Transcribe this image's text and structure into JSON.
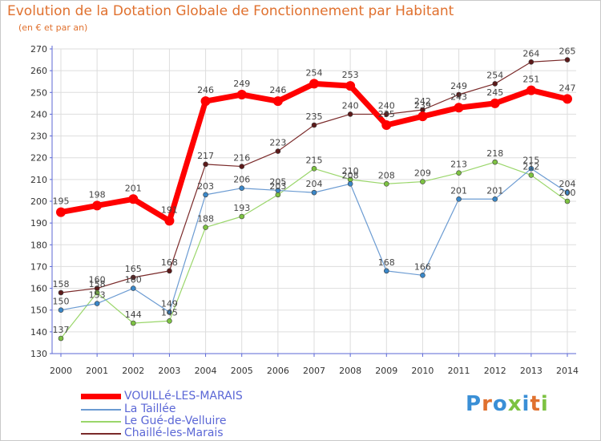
{
  "title": "Evolution de la Dotation Globale de Fonctionnement par Habitant",
  "subtitle": "(en € et par an)",
  "colors": {
    "axis": "#5b67d6",
    "grid": "#dddddd",
    "title": "#e0712f"
  },
  "logo": {
    "text": "Proxiti",
    "letter_colors": [
      "#3a8fd6",
      "#e0712f",
      "#3a8fd6",
      "#7dc242",
      "#3a8fd6",
      "#e0712f",
      "#7dc242"
    ]
  },
  "chart_data": {
    "type": "line",
    "title": "Evolution de la Dotation Globale de Fonctionnement par Habitant",
    "subtitle": "(en € et par an)",
    "x": [
      "2000",
      "2001",
      "2002",
      "2003",
      "2004",
      "2005",
      "2006",
      "2007",
      "2008",
      "2009",
      "2010",
      "2011",
      "2012",
      "2013",
      "2014"
    ],
    "ylim": [
      130,
      270
    ],
    "yticks": [
      130,
      140,
      150,
      160,
      170,
      180,
      190,
      200,
      210,
      220,
      230,
      240,
      250,
      260,
      270
    ],
    "grid": true,
    "legend_position": "bottom-left",
    "series": [
      {
        "name": "VOUILLé-LES-MARAIS",
        "color": "#ff0000",
        "marker": "#ff0000",
        "width": 7,
        "radius": 6,
        "values": [
          195,
          198,
          201,
          191,
          246,
          249,
          246,
          254,
          253,
          235,
          239,
          243,
          245,
          251,
          247
        ]
      },
      {
        "name": "La Taillée",
        "color": "#6b9bd2",
        "marker": "#3a87c8",
        "width": 1.2,
        "radius": 3,
        "values": [
          150,
          153,
          160,
          149,
          203,
          206,
          205,
          204,
          208,
          168,
          166,
          201,
          201,
          215,
          204
        ]
      },
      {
        "name": "Le Gué-de-Velluire",
        "color": "#9ad66a",
        "marker": "#7dc242",
        "width": 1.2,
        "radius": 3,
        "values": [
          137,
          158,
          144,
          145,
          188,
          193,
          203,
          215,
          210,
          208,
          209,
          213,
          218,
          212,
          200
        ]
      },
      {
        "name": "Chaillé-les-Marais",
        "color": "#7a2a2a",
        "marker": "#5c1a1a",
        "width": 1.2,
        "radius": 3,
        "values": [
          158,
          160,
          165,
          168,
          217,
          216,
          223,
          235,
          240,
          240,
          242,
          249,
          254,
          264,
          265
        ]
      }
    ]
  }
}
